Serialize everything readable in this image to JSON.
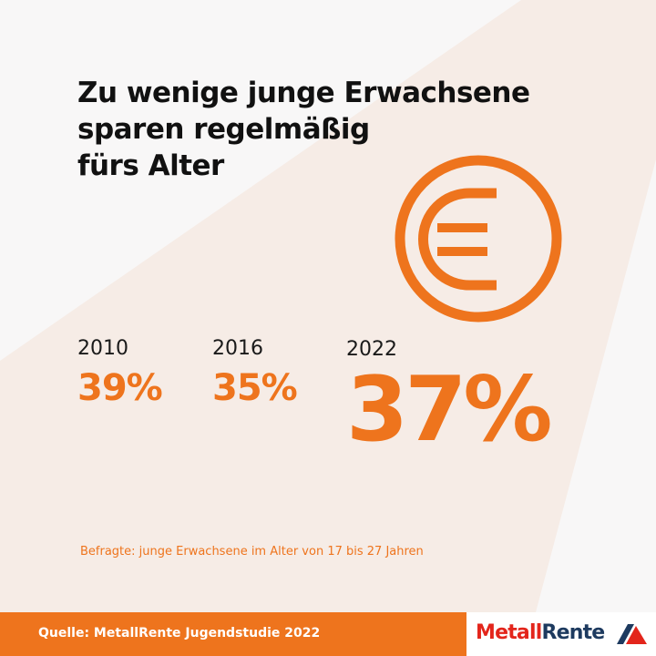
{
  "title": {
    "lines": [
      "Zu wenige junge Erwachsene",
      "sparen regelmäßig",
      "fürs Alter"
    ]
  },
  "icon": "euro-coin-icon",
  "stats": [
    {
      "year": "2010",
      "value": "39%"
    },
    {
      "year": "2016",
      "value": "35%"
    },
    {
      "year": "2022",
      "value": "37%"
    }
  ],
  "note": "Befragte: junge Erwachsene im Alter von 17 bis 27 Jahren",
  "footer": {
    "source": "Quelle: MetallRente Jugendstudie 2022",
    "logo_part1": "Metall",
    "logo_part2": "Rente"
  },
  "colors": {
    "accent": "#ee741d",
    "background": "#f8f7f7",
    "band": "#f6ece6",
    "logo_red": "#e3251b",
    "logo_blue": "#1d3a5f"
  }
}
